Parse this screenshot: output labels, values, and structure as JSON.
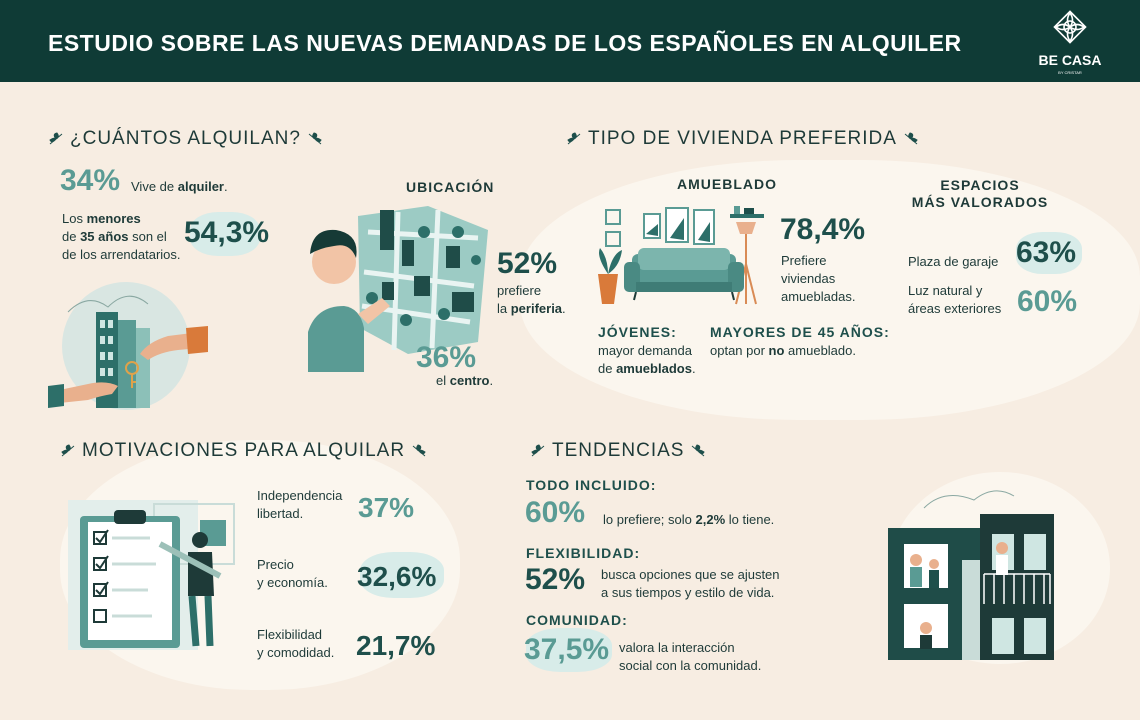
{
  "header": {
    "title": "ESTUDIO SOBRE LAS NUEVAS DEMANDAS DE LOS ESPAÑOLES EN ALQUILER",
    "logo_name": "BE CASA",
    "logo_sub": "BY CRISTAR"
  },
  "cuantos": {
    "title": "¿CUÁNTOS ALQUILAN?",
    "stat1_value": "34%",
    "stat1_text_a": "Vive de ",
    "stat1_text_b": "alquiler",
    "stat2_value": "54,3%",
    "stat2_line1_a": "Los ",
    "stat2_line1_b": "menores",
    "stat2_line2_a": "de ",
    "stat2_line2_b": "35 años",
    "stat2_line2_c": " son el",
    "stat2_line3": "de los arrendatarios."
  },
  "ubicacion": {
    "title": "UBICACIÓN",
    "periferia_value": "52%",
    "periferia_line1": "prefiere",
    "periferia_line2_a": "la ",
    "periferia_line2_b": "periferia",
    "centro_value": "36%",
    "centro_text_a": "el ",
    "centro_text_b": "centro"
  },
  "tipo": {
    "title": "TIPO DE VIVIENDA PREFERIDA",
    "amueblado_title": "AMUEBLADO",
    "amueblado_value": "78,4%",
    "amueblado_line1": "Prefiere",
    "amueblado_line2": "viviendas",
    "amueblado_line3": "amuebladas.",
    "jovenes_title": "JÓVENES:",
    "jovenes_line1": "mayor demanda",
    "jovenes_line2_a": "de ",
    "jovenes_line2_b": "amueblados",
    "mayores_title": "MAYORES DE 45 AÑOS:",
    "mayores_a": "optan por ",
    "mayores_b": "no",
    "mayores_c": " amueblado."
  },
  "espacios": {
    "title_line1": "ESPACIOS",
    "title_line2": "MÁS VALORADOS",
    "item1_label": "Plaza de garaje",
    "item1_value": "63%",
    "item2_line1": "Luz natural y",
    "item2_line2": "áreas exteriores",
    "item2_value": "60%"
  },
  "motivaciones": {
    "title": "MOTIVACIONES PARA ALQUILAR",
    "items": [
      {
        "line1": "Independencia",
        "line2": "libertad.",
        "value": "37%"
      },
      {
        "line1": "Precio",
        "line2": "y economía.",
        "value": "32,6%"
      },
      {
        "line1": "Flexibilidad",
        "line2": "y comodidad.",
        "value": "21,7%"
      }
    ]
  },
  "tendencias": {
    "title": "TENDENCIAS",
    "todo_title": "TODO INCLUIDO:",
    "todo_value": "60%",
    "todo_text_a": "lo prefiere; solo ",
    "todo_text_b": "2,2%",
    "todo_text_c": " lo tiene.",
    "flex_title": "FLEXIBILIDAD:",
    "flex_value": "52%",
    "flex_line1": "busca opciones que se ajusten",
    "flex_line2": "a sus tiempos y estilo de vida.",
    "com_title": "COMUNIDAD:",
    "com_value": "37,5%",
    "com_line1": "valora la interacción",
    "com_line2": "social con la comunidad."
  },
  "colors": {
    "header_bg": "#0f3b36",
    "accent": "#5a9b94",
    "dark_teal": "#1e4f4b",
    "background": "#f7ede2"
  },
  "icons": [
    "leaf-icon",
    "logo-mark-icon",
    "keys-illustration",
    "map-illustration",
    "sofa-illustration",
    "clipboard-illustration",
    "building-illustration"
  ]
}
